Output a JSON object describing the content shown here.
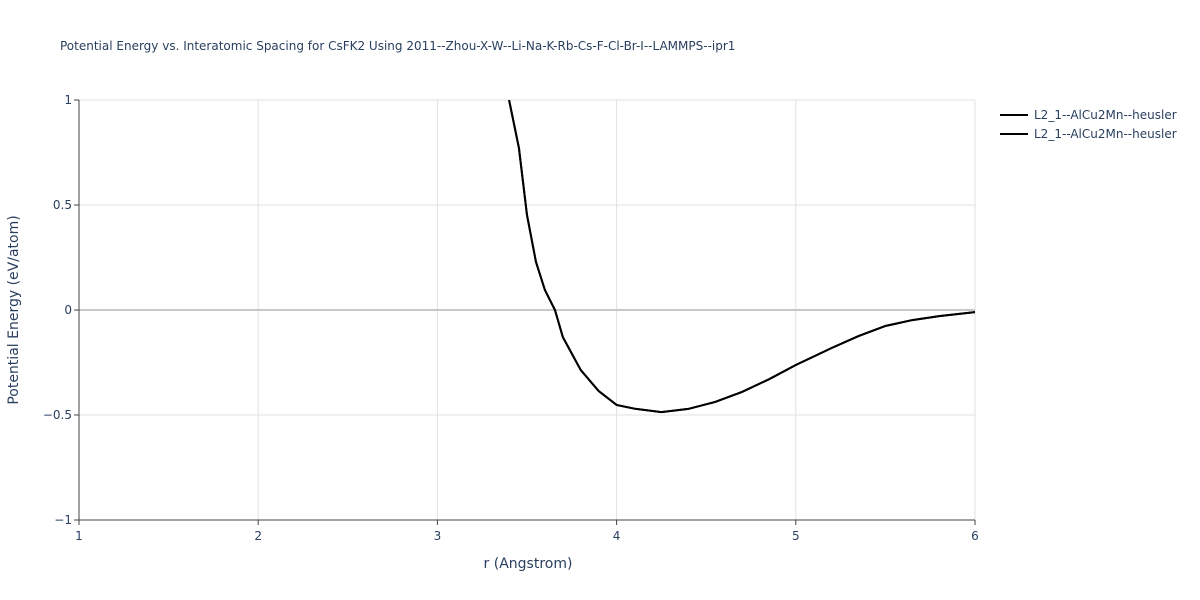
{
  "chart_data": {
    "type": "line",
    "title": "Potential Energy vs. Interatomic Spacing for CsFK2 Using 2011--Zhou-X-W--Li-Na-K-Rb-Cs-F-Cl-Br-I--LAMMPS--ipr1",
    "x_label": "r (Angstrom)",
    "y_label": "Potential Energy (eV/atom)",
    "x": [
      3.4,
      3.455,
      3.5,
      3.55,
      3.6,
      3.656,
      3.7,
      3.8,
      3.9,
      4.0,
      4.1,
      4.25,
      4.4,
      4.55,
      4.7,
      4.85,
      5.0,
      5.2,
      5.35,
      5.5,
      5.65,
      5.8,
      6.0
    ],
    "series": [
      {
        "name": "L2_1--AlCu2Mn--heusler",
        "color": "#000000",
        "values": [
          1.0,
          0.771,
          0.452,
          0.229,
          0.095,
          0.0,
          -0.129,
          -0.286,
          -0.386,
          -0.452,
          -0.47,
          -0.486,
          -0.471,
          -0.438,
          -0.39,
          -0.33,
          -0.262,
          -0.181,
          -0.124,
          -0.076,
          -0.048,
          -0.029,
          -0.01
        ]
      },
      {
        "name": "L2_1--AlCu2Mn--heusler",
        "color": "#000000",
        "values": [
          1.0,
          0.771,
          0.452,
          0.229,
          0.095,
          0.0,
          -0.129,
          -0.286,
          -0.386,
          -0.452,
          -0.47,
          -0.486,
          -0.471,
          -0.438,
          -0.39,
          -0.33,
          -0.262,
          -0.181,
          -0.124,
          -0.076,
          -0.048,
          -0.029,
          -0.01
        ]
      }
    ],
    "xlim": [
      1,
      6
    ],
    "xticks": [
      1,
      2,
      3,
      4,
      5,
      6
    ],
    "ylim": [
      -1,
      1
    ],
    "yticks": [
      {
        "value": -1,
        "label": "−1"
      },
      {
        "value": -0.5,
        "label": "−0.5"
      },
      0,
      0.5,
      1
    ],
    "grid": true,
    "legend": "right"
  }
}
